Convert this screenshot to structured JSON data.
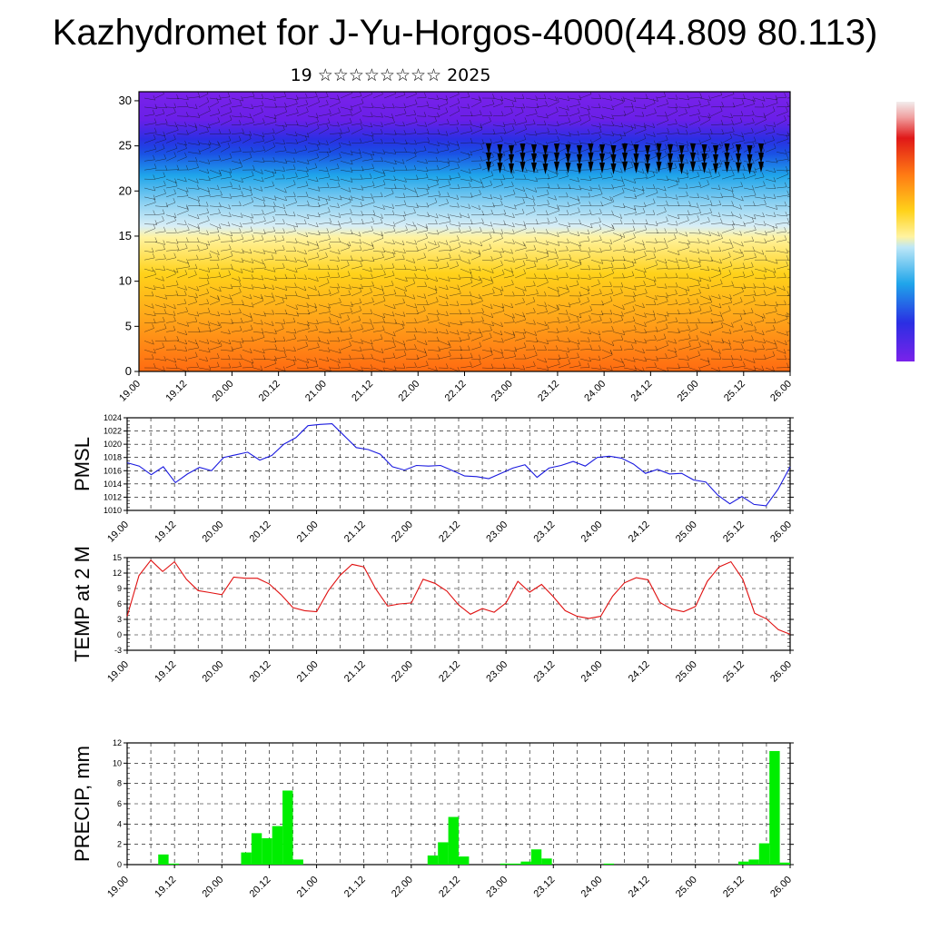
{
  "title": "Kazhydromet for J-Yu-Horgos-4000(44.809 80.113)",
  "subtitle": "19 ☆☆☆☆☆☆☆☆ 2025",
  "time_labels": [
    "19.00",
    "19.12",
    "20.00",
    "20.12",
    "21.00",
    "21.12",
    "22.00",
    "22.12",
    "23.00",
    "23.12",
    "24.00",
    "24.12",
    "25.00",
    "25.12",
    "26.00"
  ],
  "chart_data": [
    {
      "type": "heatmap",
      "name": "height-time cross section",
      "x": [
        "19.00",
        "19.12",
        "20.00",
        "20.12",
        "21.00",
        "21.12",
        "22.00",
        "22.12",
        "23.00",
        "23.12",
        "24.00",
        "24.12",
        "25.00",
        "25.12",
        "26.00"
      ],
      "y_ticks": [
        0,
        5,
        10,
        15,
        20,
        25,
        30
      ],
      "ylim": [
        0,
        31
      ],
      "colorscale": [
        "#6a1fe8",
        "#1a2ee0",
        "#1fa5ea",
        "#bde7f7",
        "#fff3a0",
        "#ffc21a",
        "#ff8a1a",
        "#e23010",
        "#f4f0f0"
      ],
      "overlay": "wind barbs and contour lines"
    },
    {
      "type": "line",
      "ylabel": "PMSL",
      "ylim": [
        1010,
        1024
      ],
      "y_ticks": [
        1010,
        1012,
        1014,
        1016,
        1018,
        1020,
        1022,
        1024
      ],
      "color": "#1a1adf",
      "values": [
        1017.2,
        1016.7,
        1015.4,
        1016.6,
        1014.2,
        1015.5,
        1016.5,
        1016.0,
        1018.0,
        1018.4,
        1018.8,
        1017.6,
        1018.3,
        1020.0,
        1021.0,
        1022.8,
        1023.0,
        1023.1,
        1021.3,
        1019.5,
        1019.2,
        1018.5,
        1016.6,
        1016.1,
        1016.8,
        1016.7,
        1016.8,
        1016.0,
        1015.2,
        1015.1,
        1014.8,
        1015.6,
        1016.4,
        1016.9,
        1015.0,
        1016.4,
        1016.8,
        1017.4,
        1016.7,
        1018.0,
        1018.2,
        1017.9,
        1017.0,
        1015.6,
        1016.2,
        1015.5,
        1015.6,
        1014.6,
        1014.3,
        1012.3,
        1011.0,
        1012.1,
        1010.9,
        1010.7,
        1013.2,
        1016.6
      ]
    },
    {
      "type": "line",
      "ylabel": "TEMP at 2 M",
      "ylim": [
        -3,
        15
      ],
      "y_ticks": [
        -3,
        0,
        3,
        6,
        9,
        12,
        15
      ],
      "color": "#e01010",
      "values": [
        3.6,
        11.5,
        14.5,
        12.3,
        14.2,
        10.8,
        8.6,
        8.2,
        7.8,
        11.2,
        11.0,
        11.0,
        9.9,
        7.8,
        5.3,
        4.7,
        4.5,
        8.6,
        11.6,
        13.7,
        13.2,
        8.9,
        5.6,
        6.0,
        6.2,
        10.8,
        10.0,
        8.5,
        5.8,
        4.0,
        5.1,
        4.4,
        6.2,
        10.4,
        8.3,
        9.8,
        7.4,
        4.7,
        3.6,
        3.2,
        3.6,
        7.5,
        10.1,
        11.1,
        10.7,
        6.3,
        5.0,
        4.5,
        5.5,
        10.4,
        13.2,
        14.2,
        10.8,
        4.2,
        3.1,
        1.0,
        0.1
      ]
    },
    {
      "type": "bar",
      "ylabel": "PRECIP, mm",
      "ylim": [
        0,
        12
      ],
      "y_ticks": [
        0,
        2,
        4,
        6,
        8,
        10,
        12
      ],
      "color": "#00ee00",
      "values": [
        0,
        0,
        0,
        1.0,
        0.1,
        0,
        0,
        0,
        0,
        0,
        0,
        1.2,
        3.1,
        2.6,
        3.8,
        7.3,
        0.5,
        0,
        0,
        0,
        0,
        0,
        0,
        0,
        0,
        0,
        0,
        0,
        0,
        0.9,
        2.2,
        4.7,
        0.8,
        0,
        0,
        0,
        0.1,
        0.1,
        0.3,
        1.5,
        0.6,
        0,
        0,
        0,
        0,
        0,
        0.1,
        0,
        0,
        0,
        0,
        0,
        0,
        0,
        0,
        0,
        0,
        0,
        0,
        0.3,
        0.5,
        2.1,
        11.2,
        0.2
      ]
    }
  ]
}
